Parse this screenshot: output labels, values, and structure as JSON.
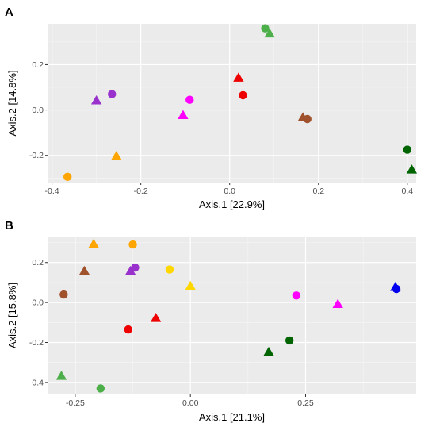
{
  "chart_data": [
    {
      "panel": "A",
      "type": "scatter",
      "xlabel": "Axis.1   [22.9%]",
      "ylabel": "Axis.2   [14.8%]",
      "xlim": [
        -0.41,
        0.42
      ],
      "ylim": [
        -0.32,
        0.38
      ],
      "xticks": [
        -0.4,
        -0.2,
        0.0,
        0.2,
        0.4
      ],
      "xtick_labels": [
        "-0.4",
        "-0.2",
        "0.0",
        "0.2",
        "0.4"
      ],
      "yticks": [
        -0.2,
        0.0,
        0.2
      ],
      "ytick_labels": [
        "-0.2",
        "0.0",
        "0.2"
      ],
      "grid": true,
      "points": [
        {
          "x": 0.08,
          "y": 0.36,
          "shape": "circle",
          "color": "#4daf4a"
        },
        {
          "x": 0.09,
          "y": 0.335,
          "shape": "triangle",
          "color": "#4daf4a"
        },
        {
          "x": -0.3,
          "y": 0.04,
          "shape": "triangle",
          "color": "#9932cc"
        },
        {
          "x": -0.265,
          "y": 0.07,
          "shape": "circle",
          "color": "#9932cc"
        },
        {
          "x": 0.02,
          "y": 0.14,
          "shape": "triangle",
          "color": "#ee0000"
        },
        {
          "x": 0.03,
          "y": 0.065,
          "shape": "circle",
          "color": "#ee0000"
        },
        {
          "x": -0.09,
          "y": 0.045,
          "shape": "circle",
          "color": "#ff00ff"
        },
        {
          "x": -0.105,
          "y": -0.025,
          "shape": "triangle",
          "color": "#ff00ff"
        },
        {
          "x": 0.165,
          "y": -0.035,
          "shape": "triangle",
          "color": "#a0522d"
        },
        {
          "x": 0.175,
          "y": -0.04,
          "shape": "circle",
          "color": "#a0522d"
        },
        {
          "x": 0.4,
          "y": -0.175,
          "shape": "circle",
          "color": "#006400"
        },
        {
          "x": 0.41,
          "y": -0.265,
          "shape": "triangle",
          "color": "#006400"
        },
        {
          "x": -0.255,
          "y": -0.205,
          "shape": "triangle",
          "color": "#ffa500"
        },
        {
          "x": -0.365,
          "y": -0.295,
          "shape": "circle",
          "color": "#ffa500"
        }
      ]
    },
    {
      "panel": "B",
      "type": "scatter",
      "xlabel": "Axis.1   [21.1%]",
      "ylabel": "Axis.2   [15.8%]",
      "xlim": [
        -0.31,
        0.49
      ],
      "ylim": [
        -0.46,
        0.33
      ],
      "xticks": [
        -0.25,
        0.0,
        0.25
      ],
      "xtick_labels": [
        "-0.25",
        "0.00",
        "0.25"
      ],
      "yticks": [
        -0.4,
        -0.2,
        0.0,
        0.2
      ],
      "ytick_labels": [
        "-0.4",
        "-0.2",
        "0.0",
        "0.2"
      ],
      "grid": true,
      "points": [
        {
          "x": -0.21,
          "y": 0.29,
          "shape": "triangle",
          "color": "#ffa500"
        },
        {
          "x": -0.125,
          "y": 0.29,
          "shape": "circle",
          "color": "#ffa500"
        },
        {
          "x": -0.045,
          "y": 0.165,
          "shape": "circle",
          "color": "#ffd700"
        },
        {
          "x": 0.0,
          "y": 0.08,
          "shape": "triangle",
          "color": "#ffd700"
        },
        {
          "x": -0.23,
          "y": 0.155,
          "shape": "triangle",
          "color": "#a0522d"
        },
        {
          "x": -0.275,
          "y": 0.04,
          "shape": "circle",
          "color": "#a0522d"
        },
        {
          "x": -0.13,
          "y": 0.155,
          "shape": "triangle",
          "color": "#9932cc"
        },
        {
          "x": -0.12,
          "y": 0.175,
          "shape": "circle",
          "color": "#9932cc"
        },
        {
          "x": -0.135,
          "y": -0.135,
          "shape": "circle",
          "color": "#ee0000"
        },
        {
          "x": -0.075,
          "y": -0.08,
          "shape": "triangle",
          "color": "#ee0000"
        },
        {
          "x": -0.28,
          "y": -0.37,
          "shape": "triangle",
          "color": "#4daf4a"
        },
        {
          "x": -0.195,
          "y": -0.43,
          "shape": "circle",
          "color": "#4daf4a"
        },
        {
          "x": 0.17,
          "y": -0.25,
          "shape": "triangle",
          "color": "#006400"
        },
        {
          "x": 0.215,
          "y": -0.19,
          "shape": "circle",
          "color": "#006400"
        },
        {
          "x": 0.23,
          "y": 0.035,
          "shape": "circle",
          "color": "#ff00ff"
        },
        {
          "x": 0.32,
          "y": -0.01,
          "shape": "triangle",
          "color": "#ff00ff"
        },
        {
          "x": 0.445,
          "y": 0.075,
          "shape": "triangle",
          "color": "#0000ee"
        },
        {
          "x": 0.447,
          "y": 0.068,
          "shape": "circle",
          "color": "#0000ee"
        }
      ]
    }
  ]
}
